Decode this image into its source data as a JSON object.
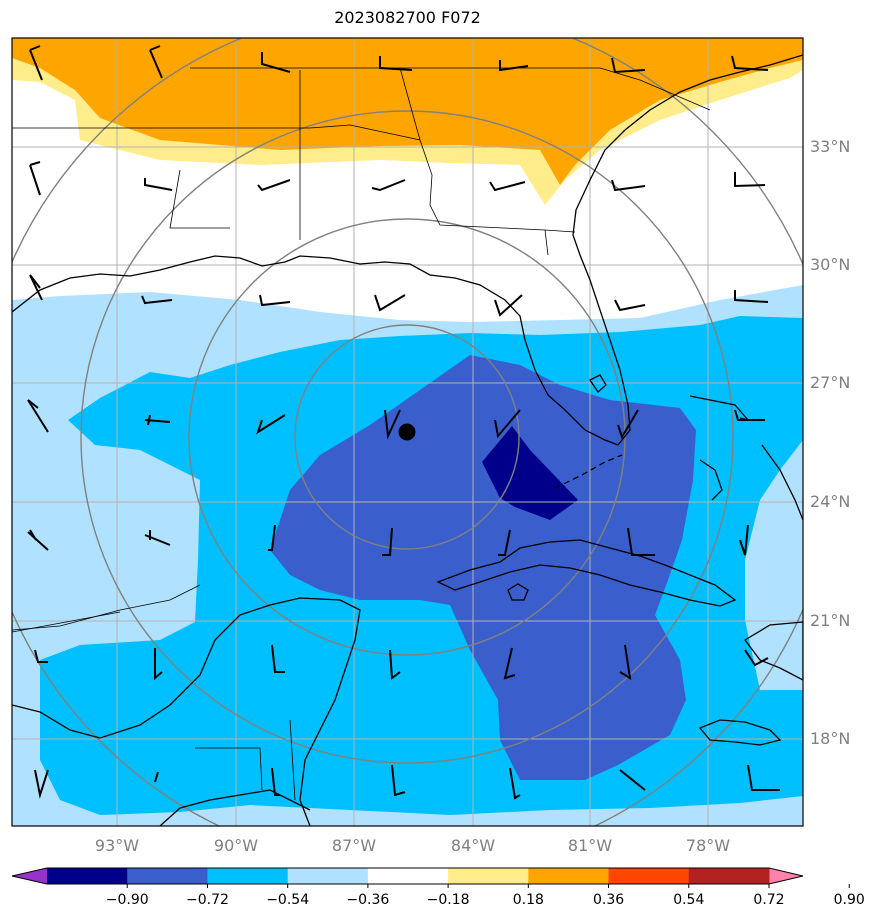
{
  "title": "2023082700 F072",
  "lat_labels": [
    "33°N",
    "30°N",
    "27°N",
    "24°N",
    "21°N",
    "18°N"
  ],
  "lon_labels": [
    "93°W",
    "90°W",
    "87°W",
    "84°W",
    "81°W",
    "78°W"
  ],
  "colorbar": {
    "ticks": [
      "−0.90",
      "−0.72",
      "−0.54",
      "−0.36",
      "−0.18",
      "0.18",
      "0.36",
      "0.54",
      "0.72",
      "0.90"
    ],
    "colors": [
      "#9932cc",
      "#00008b",
      "#3a5fcd",
      "#00bfff",
      "#b0e2ff",
      "#ffffff",
      "#ffec8b",
      "#ffa500",
      "#ff4500",
      "#b22222",
      "#ff82ab"
    ]
  },
  "field_colors": {
    "deep_blue": "#00008b",
    "blue": "#3a5fcd",
    "sky": "#00bfff",
    "light_sky": "#b0e2ff",
    "yellow": "#ffec8b",
    "orange": "#ffa500"
  },
  "marker": {
    "label": "storm-center",
    "lat": 25.7,
    "lon": -85.5
  }
}
